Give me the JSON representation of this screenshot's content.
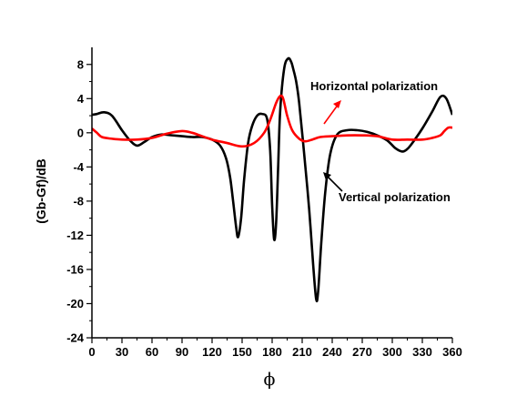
{
  "chart_data": {
    "type": "line",
    "title": "",
    "xlabel": "ϕ",
    "ylabel": "(Gb-Gf)/dB",
    "xlim": [
      0,
      360
    ],
    "ylim": [
      -24,
      10
    ],
    "xticks": [
      0,
      30,
      60,
      90,
      120,
      150,
      180,
      210,
      240,
      270,
      300,
      330,
      360
    ],
    "yticks": [
      -24,
      -20,
      -16,
      -12,
      -8,
      -4,
      0,
      4,
      8
    ],
    "grid": false,
    "legend": "none",
    "series": [
      {
        "color": "#000000",
        "x": [
          0,
          5,
          12,
          20,
          30,
          38,
          45,
          52,
          60,
          70,
          80,
          90,
          100,
          110,
          120,
          128,
          134,
          138,
          141,
          144,
          146,
          149,
          152,
          156,
          160,
          165,
          170,
          175,
          178,
          180,
          182,
          184,
          186,
          188,
          192,
          196,
          199,
          201,
          204,
          207,
          212,
          217,
          221,
          224,
          226,
          229,
          233,
          238,
          245,
          255,
          265,
          275,
          285,
          295,
          303,
          310,
          315,
          320,
          330,
          340,
          348,
          354,
          360
        ],
        "y": [
          2.1,
          2.2,
          2.4,
          2.0,
          0.3,
          -0.9,
          -1.5,
          -1.1,
          -0.5,
          -0.2,
          -0.3,
          -0.4,
          -0.5,
          -0.5,
          -0.8,
          -1.5,
          -3.0,
          -5.2,
          -8.0,
          -11.0,
          -12.2,
          -10.0,
          -5.5,
          -1.2,
          0.8,
          2.0,
          2.2,
          1.6,
          -2.0,
          -8.5,
          -12.5,
          -10.5,
          -4.0,
          2.5,
          7.5,
          8.7,
          8.3,
          7.5,
          6.0,
          3.5,
          -2.5,
          -9.0,
          -15.5,
          -19.5,
          -18.5,
          -13.0,
          -7.0,
          -2.5,
          -0.2,
          0.3,
          0.3,
          0.1,
          -0.3,
          -0.9,
          -1.8,
          -2.2,
          -1.9,
          -1.2,
          0.5,
          2.5,
          4.2,
          4.0,
          2.1
        ]
      },
      {
        "color": "#ff0000",
        "x": [
          0,
          5,
          10,
          20,
          30,
          45,
          60,
          75,
          90,
          100,
          110,
          120,
          135,
          150,
          162,
          172,
          178,
          184,
          188,
          191,
          195,
          200,
          207,
          213,
          220,
          228,
          240,
          255,
          270,
          285,
          300,
          315,
          330,
          340,
          348,
          352,
          356,
          360
        ],
        "y": [
          0.5,
          0.0,
          -0.5,
          -0.7,
          -0.8,
          -0.8,
          -0.6,
          -0.1,
          0.2,
          0.0,
          -0.4,
          -0.8,
          -1.2,
          -1.6,
          -1.2,
          0.0,
          1.5,
          3.5,
          4.3,
          4.0,
          2.0,
          0.3,
          -0.7,
          -1.0,
          -0.8,
          -0.5,
          -0.4,
          -0.3,
          -0.3,
          -0.4,
          -0.8,
          -0.8,
          -0.8,
          -0.6,
          -0.3,
          0.2,
          0.6,
          0.6
        ]
      }
    ],
    "annotations": [
      {
        "text": "Horizontal polarization",
        "color": "#ff0000"
      },
      {
        "text": "Vertical polarization",
        "color": "#000000"
      }
    ]
  }
}
